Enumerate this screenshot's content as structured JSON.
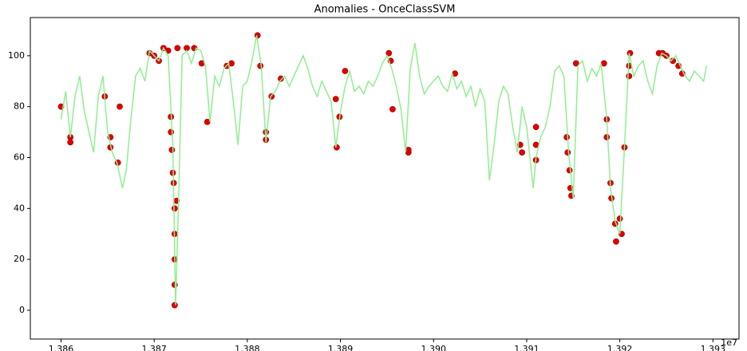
{
  "chart_data": {
    "type": "line",
    "title": "Anomalies - OnceClassSVM",
    "x_offset_label": "1e7",
    "xlim": [
      13856700,
      13932800
    ],
    "ylim": [
      -11.3,
      115
    ],
    "xticks": [
      {
        "value": 13860000,
        "label": "1.386"
      },
      {
        "value": 13870000,
        "label": "1.387"
      },
      {
        "value": 13880000,
        "label": "1.388"
      },
      {
        "value": 13890000,
        "label": "1.389"
      },
      {
        "value": 13900000,
        "label": "1.390"
      },
      {
        "value": 13910000,
        "label": "1.391"
      },
      {
        "value": 13920000,
        "label": "1.392"
      },
      {
        "value": 13930000,
        "label": "1.393"
      }
    ],
    "yticks": [
      0,
      20,
      40,
      60,
      80,
      100
    ],
    "line": {
      "color": "#90ee90",
      "x": [
        13860000,
        13860500,
        13861000,
        13861500,
        13862000,
        13862500,
        13863000,
        13863500,
        13864000,
        13864500,
        13865000,
        13865500,
        13866000,
        13866600,
        13867000,
        13867500,
        13868000,
        13868500,
        13869000,
        13869500,
        13870000,
        13870500,
        13871000,
        13871500,
        13872000,
        13872300,
        13872600,
        13873000,
        13873500,
        13874000,
        13874500,
        13875000,
        13875500,
        13876000,
        13876500,
        13877000,
        13877500,
        13878000,
        13878500,
        13879000,
        13879500,
        13880000,
        13880500,
        13881000,
        13881500,
        13882000,
        13882500,
        13883000,
        13883500,
        13884000,
        13884500,
        13885000,
        13886000,
        13886500,
        13887000,
        13887500,
        13888000,
        13888500,
        13889000,
        13889500,
        13890000,
        13890500,
        13891000,
        13891500,
        13892000,
        13892500,
        13893000,
        13893500,
        13894000,
        13894500,
        13895000,
        13895500,
        13896000,
        13896500,
        13897000,
        13897500,
        13898000,
        13898500,
        13899000,
        13899500,
        13900000,
        13900500,
        13901000,
        13901500,
        13902000,
        13902500,
        13903000,
        13903500,
        13904000,
        13904500,
        13905000,
        13905500,
        13906000,
        13906500,
        13907000,
        13907500,
        13908000,
        13908500,
        13909000,
        13909500,
        13910000,
        13910700,
        13911000,
        13911500,
        13912000,
        13912500,
        13913000,
        13913500,
        13914000,
        13914500,
        13915000,
        13915500,
        13916000,
        13916500,
        13917000,
        13917500,
        13918000,
        13918600,
        13919000,
        13919500,
        13920000,
        13920500,
        13921000,
        13921500,
        13922000,
        13922500,
        13923000,
        13923500,
        13924000,
        13924500,
        13925000,
        13925500,
        13926000,
        13926500,
        13927000,
        13927500,
        13928000,
        13928500,
        13929000,
        13929300
      ],
      "values": [
        75,
        86,
        68,
        84,
        92,
        78,
        70,
        62,
        84,
        92,
        70,
        62,
        58,
        48,
        55,
        75,
        92,
        95,
        90,
        102,
        100,
        98,
        103,
        100,
        65,
        2,
        40,
        100,
        102,
        97,
        103,
        102,
        96,
        74,
        92,
        88,
        95,
        97,
        82,
        65,
        88,
        90,
        98,
        108,
        96,
        66,
        84,
        86,
        90,
        92,
        88,
        92,
        100,
        95,
        88,
        84,
        90,
        86,
        82,
        64,
        78,
        88,
        94,
        86,
        88,
        85,
        90,
        88,
        92,
        97,
        100,
        95,
        88,
        79,
        62,
        95,
        105,
        92,
        85,
        88,
        90,
        92,
        88,
        86,
        93,
        87,
        90,
        84,
        88,
        80,
        87,
        82,
        51,
        65,
        82,
        88,
        85,
        72,
        62,
        80,
        72,
        48,
        60,
        68,
        72,
        80,
        94,
        96,
        92,
        62,
        44,
        96,
        98,
        90,
        95,
        92,
        97,
        75,
        48,
        35,
        30,
        64,
        101,
        92,
        96,
        98,
        90,
        85,
        96,
        101,
        100,
        98,
        100,
        96,
        92,
        90,
        94,
        92,
        90,
        96
      ]
    },
    "anomalies": {
      "color": "#e00000",
      "x": [
        13860000,
        13861000,
        13861000,
        13864700,
        13865300,
        13865300,
        13866100,
        13866300,
        13869500,
        13870000,
        13870500,
        13871000,
        13871500,
        13871800,
        13871800,
        13871900,
        13872000,
        13872100,
        13872200,
        13872200,
        13872200,
        13872200,
        13872200,
        13872400,
        13872500,
        13873500,
        13874300,
        13875100,
        13875700,
        13877800,
        13878300,
        13881100,
        13881400,
        13882000,
        13882000,
        13882600,
        13883600,
        13889500,
        13889600,
        13889900,
        13890500,
        13895200,
        13895400,
        13895600,
        13897300,
        13897300,
        13902300,
        13909300,
        13909500,
        13911000,
        13911000,
        13911000,
        13914300,
        13914400,
        13914600,
        13914700,
        13914800,
        13915300,
        13918300,
        13918600,
        13918600,
        13919000,
        13919100,
        13919500,
        13919600,
        13920000,
        13920200,
        13920500,
        13921100,
        13921000,
        13921000,
        13924200,
        13924600,
        13925000,
        13925700,
        13926300,
        13926700
      ],
      "values": [
        80,
        68,
        66,
        84,
        64,
        68,
        58,
        80,
        101,
        100,
        98,
        103,
        102,
        76,
        70,
        63,
        54,
        50,
        40,
        30,
        20,
        10,
        2,
        43,
        103,
        103,
        103,
        97,
        74,
        96,
        97,
        108,
        96,
        70,
        67,
        84,
        91,
        83,
        64,
        76,
        94,
        101,
        98,
        79,
        62,
        63,
        93,
        65,
        62,
        72,
        65,
        59,
        68,
        62,
        55,
        48,
        45,
        97,
        97,
        75,
        68,
        50,
        44,
        34,
        27,
        36,
        30,
        64,
        101,
        96,
        92,
        101,
        101,
        100,
        98,
        96,
        93
      ]
    }
  }
}
